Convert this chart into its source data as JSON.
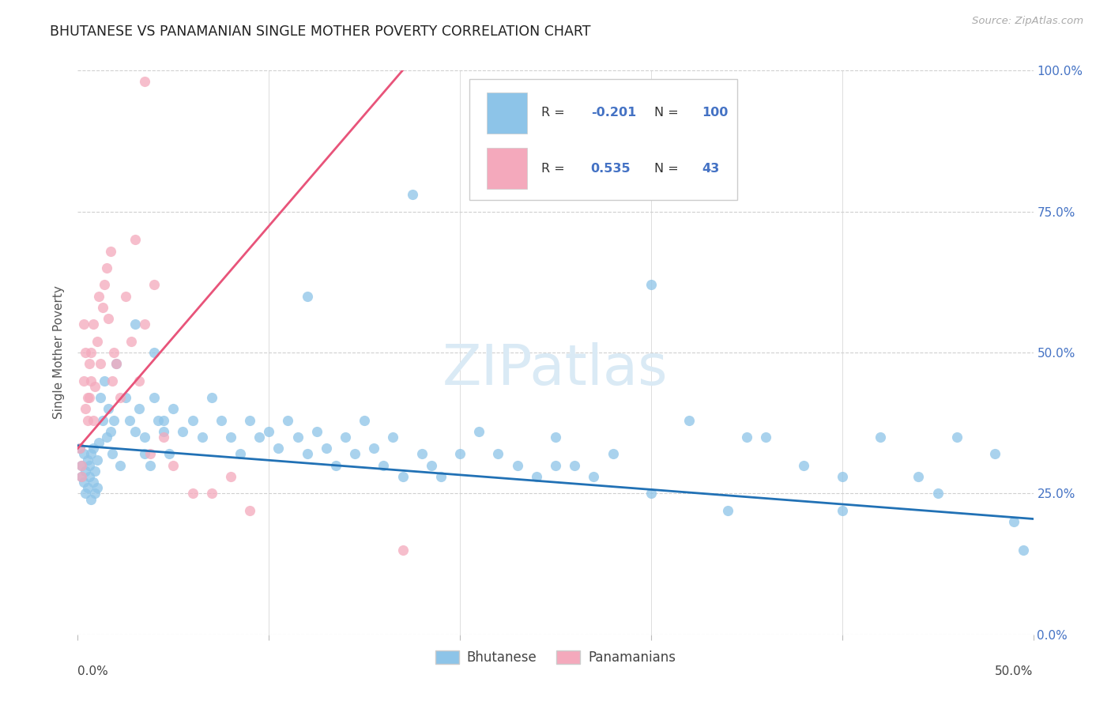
{
  "title": "BHUTANESE VS PANAMANIAN SINGLE MOTHER POVERTY CORRELATION CHART",
  "source": "Source: ZipAtlas.com",
  "ylabel": "Single Mother Poverty",
  "ytick_labels": [
    "0.0%",
    "25.0%",
    "50.0%",
    "75.0%",
    "100.0%"
  ],
  "ytick_vals": [
    0.0,
    0.25,
    0.5,
    0.75,
    1.0
  ],
  "xmin": 0.0,
  "xmax": 0.5,
  "ymin": 0.0,
  "ymax": 1.0,
  "blue_R": -0.201,
  "blue_N": 100,
  "pink_R": 0.535,
  "pink_N": 43,
  "blue_color": "#8dc4e8",
  "pink_color": "#f4a9bc",
  "blue_line_color": "#2171b5",
  "pink_line_color": "#e8547a",
  "watermark_color": "#daeaf5",
  "legend_label_blue": "Bhutanese",
  "legend_label_pink": "Panamanians",
  "blue_scatter_x": [
    0.001,
    0.002,
    0.002,
    0.003,
    0.003,
    0.004,
    0.004,
    0.005,
    0.005,
    0.006,
    0.006,
    0.007,
    0.007,
    0.008,
    0.008,
    0.009,
    0.009,
    0.01,
    0.01,
    0.011,
    0.012,
    0.013,
    0.014,
    0.015,
    0.016,
    0.017,
    0.018,
    0.019,
    0.02,
    0.022,
    0.025,
    0.027,
    0.03,
    0.032,
    0.035,
    0.038,
    0.04,
    0.042,
    0.045,
    0.048,
    0.05,
    0.055,
    0.06,
    0.065,
    0.07,
    0.075,
    0.08,
    0.085,
    0.09,
    0.095,
    0.1,
    0.105,
    0.11,
    0.115,
    0.12,
    0.125,
    0.13,
    0.135,
    0.14,
    0.145,
    0.15,
    0.155,
    0.16,
    0.165,
    0.17,
    0.175,
    0.18,
    0.185,
    0.19,
    0.2,
    0.21,
    0.22,
    0.23,
    0.24,
    0.25,
    0.26,
    0.27,
    0.28,
    0.3,
    0.32,
    0.34,
    0.36,
    0.38,
    0.4,
    0.42,
    0.44,
    0.46,
    0.48,
    0.49,
    0.495,
    0.03,
    0.035,
    0.04,
    0.045,
    0.12,
    0.25,
    0.3,
    0.35,
    0.4,
    0.45
  ],
  "blue_scatter_y": [
    0.33,
    0.28,
    0.3,
    0.27,
    0.32,
    0.25,
    0.29,
    0.31,
    0.26,
    0.28,
    0.3,
    0.24,
    0.32,
    0.27,
    0.33,
    0.25,
    0.29,
    0.31,
    0.26,
    0.34,
    0.42,
    0.38,
    0.45,
    0.35,
    0.4,
    0.36,
    0.32,
    0.38,
    0.48,
    0.3,
    0.42,
    0.38,
    0.36,
    0.4,
    0.35,
    0.3,
    0.42,
    0.38,
    0.36,
    0.32,
    0.4,
    0.36,
    0.38,
    0.35,
    0.42,
    0.38,
    0.35,
    0.32,
    0.38,
    0.35,
    0.36,
    0.33,
    0.38,
    0.35,
    0.32,
    0.36,
    0.33,
    0.3,
    0.35,
    0.32,
    0.38,
    0.33,
    0.3,
    0.35,
    0.28,
    0.78,
    0.32,
    0.3,
    0.28,
    0.32,
    0.36,
    0.32,
    0.3,
    0.28,
    0.35,
    0.3,
    0.28,
    0.32,
    0.25,
    0.38,
    0.22,
    0.35,
    0.3,
    0.22,
    0.35,
    0.28,
    0.35,
    0.32,
    0.2,
    0.15,
    0.55,
    0.32,
    0.5,
    0.38,
    0.6,
    0.3,
    0.62,
    0.35,
    0.28,
    0.25
  ],
  "pink_scatter_x": [
    0.001,
    0.002,
    0.002,
    0.003,
    0.003,
    0.004,
    0.004,
    0.005,
    0.005,
    0.006,
    0.006,
    0.007,
    0.007,
    0.008,
    0.008,
    0.009,
    0.01,
    0.011,
    0.012,
    0.013,
    0.014,
    0.015,
    0.016,
    0.017,
    0.018,
    0.019,
    0.02,
    0.022,
    0.025,
    0.028,
    0.03,
    0.032,
    0.035,
    0.038,
    0.04,
    0.045,
    0.05,
    0.06,
    0.07,
    0.08,
    0.09,
    0.17,
    0.035
  ],
  "pink_scatter_y": [
    0.33,
    0.3,
    0.28,
    0.55,
    0.45,
    0.4,
    0.5,
    0.42,
    0.38,
    0.48,
    0.42,
    0.5,
    0.45,
    0.55,
    0.38,
    0.44,
    0.52,
    0.6,
    0.48,
    0.58,
    0.62,
    0.65,
    0.56,
    0.68,
    0.45,
    0.5,
    0.48,
    0.42,
    0.6,
    0.52,
    0.7,
    0.45,
    0.55,
    0.32,
    0.62,
    0.35,
    0.3,
    0.25,
    0.25,
    0.28,
    0.22,
    0.15,
    0.98
  ],
  "background_color": "#ffffff",
  "grid_color": "#d0d0d0",
  "right_axis_color": "#4472c4",
  "title_color": "#222222",
  "source_color": "#aaaaaa",
  "ylabel_color": "#555555"
}
